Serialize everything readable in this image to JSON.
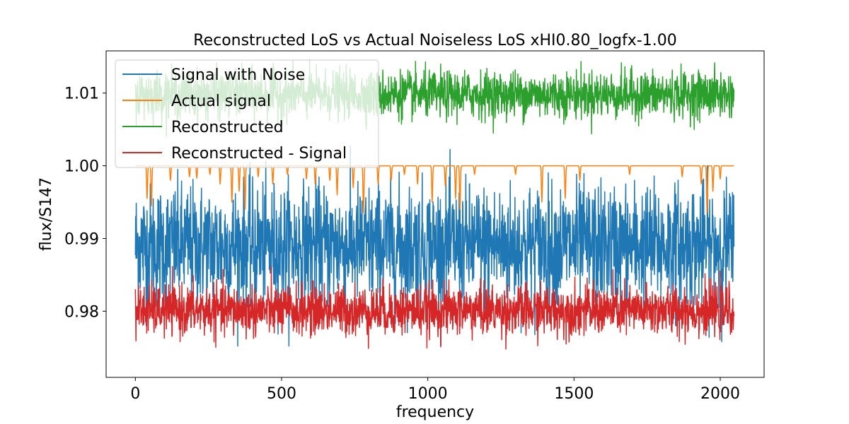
{
  "chart_data": {
    "type": "line",
    "title": "Reconstructed LoS vs Actual Noiseless LoS xHI0.80_logfx-1.00",
    "xlabel": "frequency",
    "ylabel": "flux/S147",
    "xlim": [
      -100,
      2150
    ],
    "ylim": [
      0.9709,
      1.0158
    ],
    "xticks": [
      0,
      500,
      1000,
      1500,
      2000
    ],
    "xtick_labels": [
      "0",
      "500",
      "1000",
      "1500",
      "2000"
    ],
    "yticks": [
      0.98,
      0.99,
      1.0,
      1.01
    ],
    "ytick_labels": [
      "0.98",
      "0.99",
      "1.00",
      "1.01"
    ],
    "grid": false,
    "legend_position": "upper-left",
    "n_points": 2048,
    "series": [
      {
        "name": "Signal with Noise",
        "color": "#1f77b4",
        "description": "noisy line centered near 0.989, typical range 0.982-0.996, extremes 0.975-1.003",
        "center": 0.989,
        "spread": 0.0042,
        "min": 0.9752,
        "max": 1.0031
      },
      {
        "name": "Actual signal",
        "color": "#ff7f0e",
        "description": "flat at 1.000 with occasional absorption dips down to about 0.9935",
        "baseline": 1.0,
        "absorption_dips": [
          {
            "x": 40,
            "depth": 0.0045
          },
          {
            "x": 55,
            "depth": 0.0055
          },
          {
            "x": 120,
            "depth": 0.002
          },
          {
            "x": 185,
            "depth": 0.0015
          },
          {
            "x": 210,
            "depth": 0.0017
          },
          {
            "x": 255,
            "depth": 0.0012
          },
          {
            "x": 290,
            "depth": 0.0025
          },
          {
            "x": 330,
            "depth": 0.005
          },
          {
            "x": 355,
            "depth": 0.0035
          },
          {
            "x": 375,
            "depth": 0.006
          },
          {
            "x": 420,
            "depth": 0.0015
          },
          {
            "x": 470,
            "depth": 0.0025
          },
          {
            "x": 520,
            "depth": 0.0012
          },
          {
            "x": 585,
            "depth": 0.0018
          },
          {
            "x": 615,
            "depth": 0.0025
          },
          {
            "x": 665,
            "depth": 0.002
          },
          {
            "x": 690,
            "depth": 0.004
          },
          {
            "x": 745,
            "depth": 0.003
          },
          {
            "x": 780,
            "depth": 0.0065
          },
          {
            "x": 830,
            "depth": 0.0025
          },
          {
            "x": 875,
            "depth": 0.002
          },
          {
            "x": 920,
            "depth": 0.0012
          },
          {
            "x": 965,
            "depth": 0.0025
          },
          {
            "x": 1015,
            "depth": 0.005
          },
          {
            "x": 1060,
            "depth": 0.0028
          },
          {
            "x": 1095,
            "depth": 0.0045
          },
          {
            "x": 1110,
            "depth": 0.006
          },
          {
            "x": 1160,
            "depth": 0.0012
          },
          {
            "x": 1300,
            "depth": 0.0012
          },
          {
            "x": 1390,
            "depth": 0.005
          },
          {
            "x": 1470,
            "depth": 0.0045
          },
          {
            "x": 1520,
            "depth": 0.002
          },
          {
            "x": 1690,
            "depth": 0.0012
          },
          {
            "x": 1870,
            "depth": 0.0015
          },
          {
            "x": 1935,
            "depth": 0.0025
          },
          {
            "x": 1955,
            "depth": 0.0065
          },
          {
            "x": 1975,
            "depth": 0.0035
          },
          {
            "x": 2000,
            "depth": 0.0018
          }
        ]
      },
      {
        "name": "Reconstructed",
        "color": "#2ca02c",
        "description": "noisy line centered near 1.010, typical range 1.007-1.013, extremes 1.004-1.015",
        "center": 1.0098,
        "spread": 0.0016,
        "min": 1.004,
        "max": 1.0149
      },
      {
        "name": "Reconstructed - Signal",
        "color": "#d62728",
        "description": "noisy line centered near 0.980, typical range 0.977-0.983, extremes 0.973-0.986",
        "center": 0.9801,
        "spread": 0.0017,
        "min": 0.9729,
        "max": 0.9862
      }
    ]
  }
}
